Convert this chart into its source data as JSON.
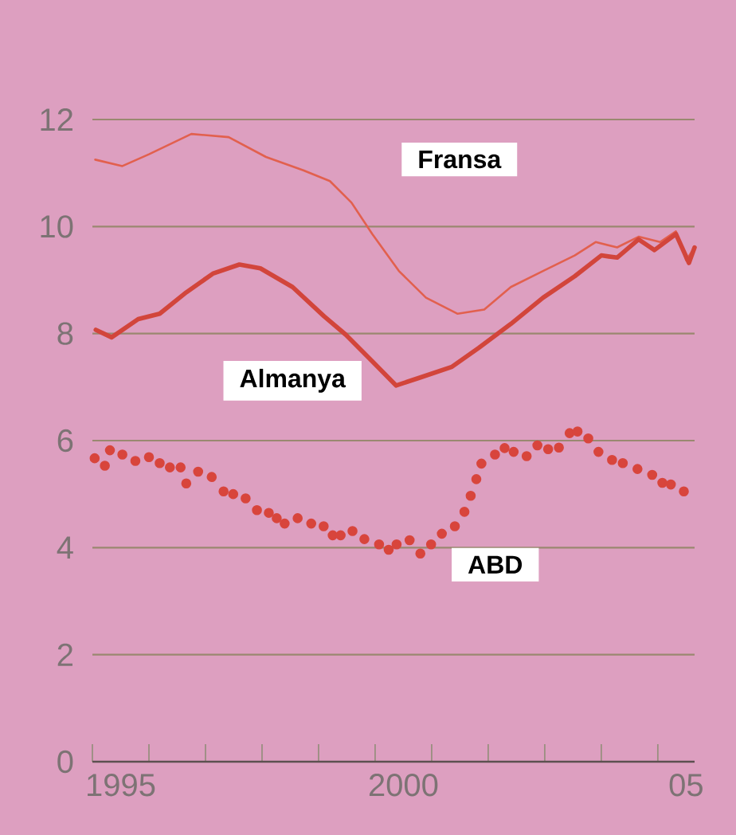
{
  "chart_data": {
    "type": "line",
    "xlim": [
      1994.5,
      2005.15
    ],
    "ylim": [
      0,
      12
    ],
    "xticks": [
      {
        "value": 1994.5,
        "label": null
      },
      1995,
      {
        "value": 1995.5,
        "label": null
      },
      {
        "value": 1996.5,
        "label": null
      },
      {
        "value": 1997.5,
        "label": null
      },
      {
        "value": 1998.5,
        "label": null
      },
      {
        "value": 1999.5,
        "label": null
      },
      2000,
      {
        "value": 2000.5,
        "label": null
      },
      {
        "value": 2001.5,
        "label": null
      },
      {
        "value": 2002.5,
        "label": null
      },
      {
        "value": 2003.5,
        "label": null
      },
      {
        "value": 2004.5,
        "label": null
      },
      {
        "value": 2005,
        "label": "05"
      }
    ],
    "yticks": [
      0,
      2,
      4,
      6,
      8,
      10,
      12
    ],
    "grid": "y",
    "line_style": "solid",
    "series": [
      {
        "name": "Fransa",
        "color": "#e2604e",
        "x": [
          1994.55,
          1995.03,
          1995.5,
          1996.25,
          1996.91,
          1997.57,
          1998.23,
          1998.7,
          1999.08,
          1999.45,
          1999.92,
          2000.4,
          2000.96,
          2001.43,
          2001.9,
          2002.47,
          2003.03,
          2003.4,
          2003.78,
          2004.16,
          2004.54,
          2004.82,
          2005.0,
          2005.15
        ],
        "values": [
          11.25,
          11.13,
          11.35,
          11.73,
          11.67,
          11.3,
          11.05,
          10.85,
          10.45,
          9.86,
          9.17,
          8.67,
          8.37,
          8.45,
          8.87,
          9.17,
          9.46,
          9.71,
          9.61,
          9.81,
          9.71,
          9.91,
          9.37,
          9.61
        ]
      },
      {
        "name": "Almanya",
        "color": "#d2453b",
        "x": [
          1994.56,
          1994.84,
          1995.31,
          1995.69,
          1996.16,
          1996.63,
          1997.1,
          1997.47,
          1998.04,
          1998.6,
          1998.98,
          1999.45,
          1999.87,
          2000.3,
          2000.86,
          2001.33,
          2001.9,
          2002.47,
          2003.03,
          2003.5,
          2003.78,
          2004.16,
          2004.44,
          2004.82,
          2005.05,
          2005.15
        ],
        "values": [
          8.07,
          7.93,
          8.27,
          8.37,
          8.77,
          9.12,
          9.29,
          9.22,
          8.87,
          8.32,
          7.98,
          7.48,
          7.03,
          7.18,
          7.38,
          7.73,
          8.18,
          8.67,
          9.07,
          9.46,
          9.42,
          9.76,
          9.56,
          9.86,
          9.32,
          9.61
        ]
      },
      {
        "name": "ABD",
        "type": "scatter",
        "marker": "circle",
        "color": "#d8453c",
        "x": [
          1994.54,
          1994.72,
          1994.81,
          1995.03,
          1995.26,
          1995.5,
          1995.69,
          1995.87,
          1996.06,
          1996.16,
          1996.37,
          1996.61,
          1996.82,
          1996.99,
          1997.21,
          1997.41,
          1997.62,
          1997.76,
          1997.9,
          1998.13,
          1998.37,
          1998.59,
          1998.75,
          1998.89,
          1999.1,
          1999.31,
          1999.57,
          1999.74,
          1999.88,
          2000.11,
          2000.3,
          2000.49,
          2000.68,
          2000.91,
          2001.08,
          2001.19,
          2001.29,
          2001.38,
          2001.62,
          2001.79,
          2001.95,
          2002.18,
          2002.37,
          2002.56,
          2002.75,
          2002.94,
          2003.08,
          2003.27,
          2003.45,
          2003.69,
          2003.88,
          2004.14,
          2004.4,
          2004.58,
          2004.73,
          2004.96
        ],
        "values": [
          5.67,
          5.53,
          5.82,
          5.74,
          5.62,
          5.69,
          5.58,
          5.5,
          5.5,
          5.2,
          5.42,
          5.32,
          5.05,
          5.0,
          4.92,
          4.7,
          4.65,
          4.55,
          4.45,
          4.55,
          4.45,
          4.4,
          4.23,
          4.23,
          4.31,
          4.16,
          4.06,
          3.96,
          4.06,
          4.14,
          3.89,
          4.06,
          4.26,
          4.4,
          4.67,
          4.97,
          5.28,
          5.57,
          5.74,
          5.86,
          5.79,
          5.71,
          5.91,
          5.84,
          5.87,
          6.14,
          6.17,
          6.04,
          5.79,
          5.64,
          5.58,
          5.47,
          5.36,
          5.21,
          5.18,
          5.05
        ]
      }
    ]
  }
}
